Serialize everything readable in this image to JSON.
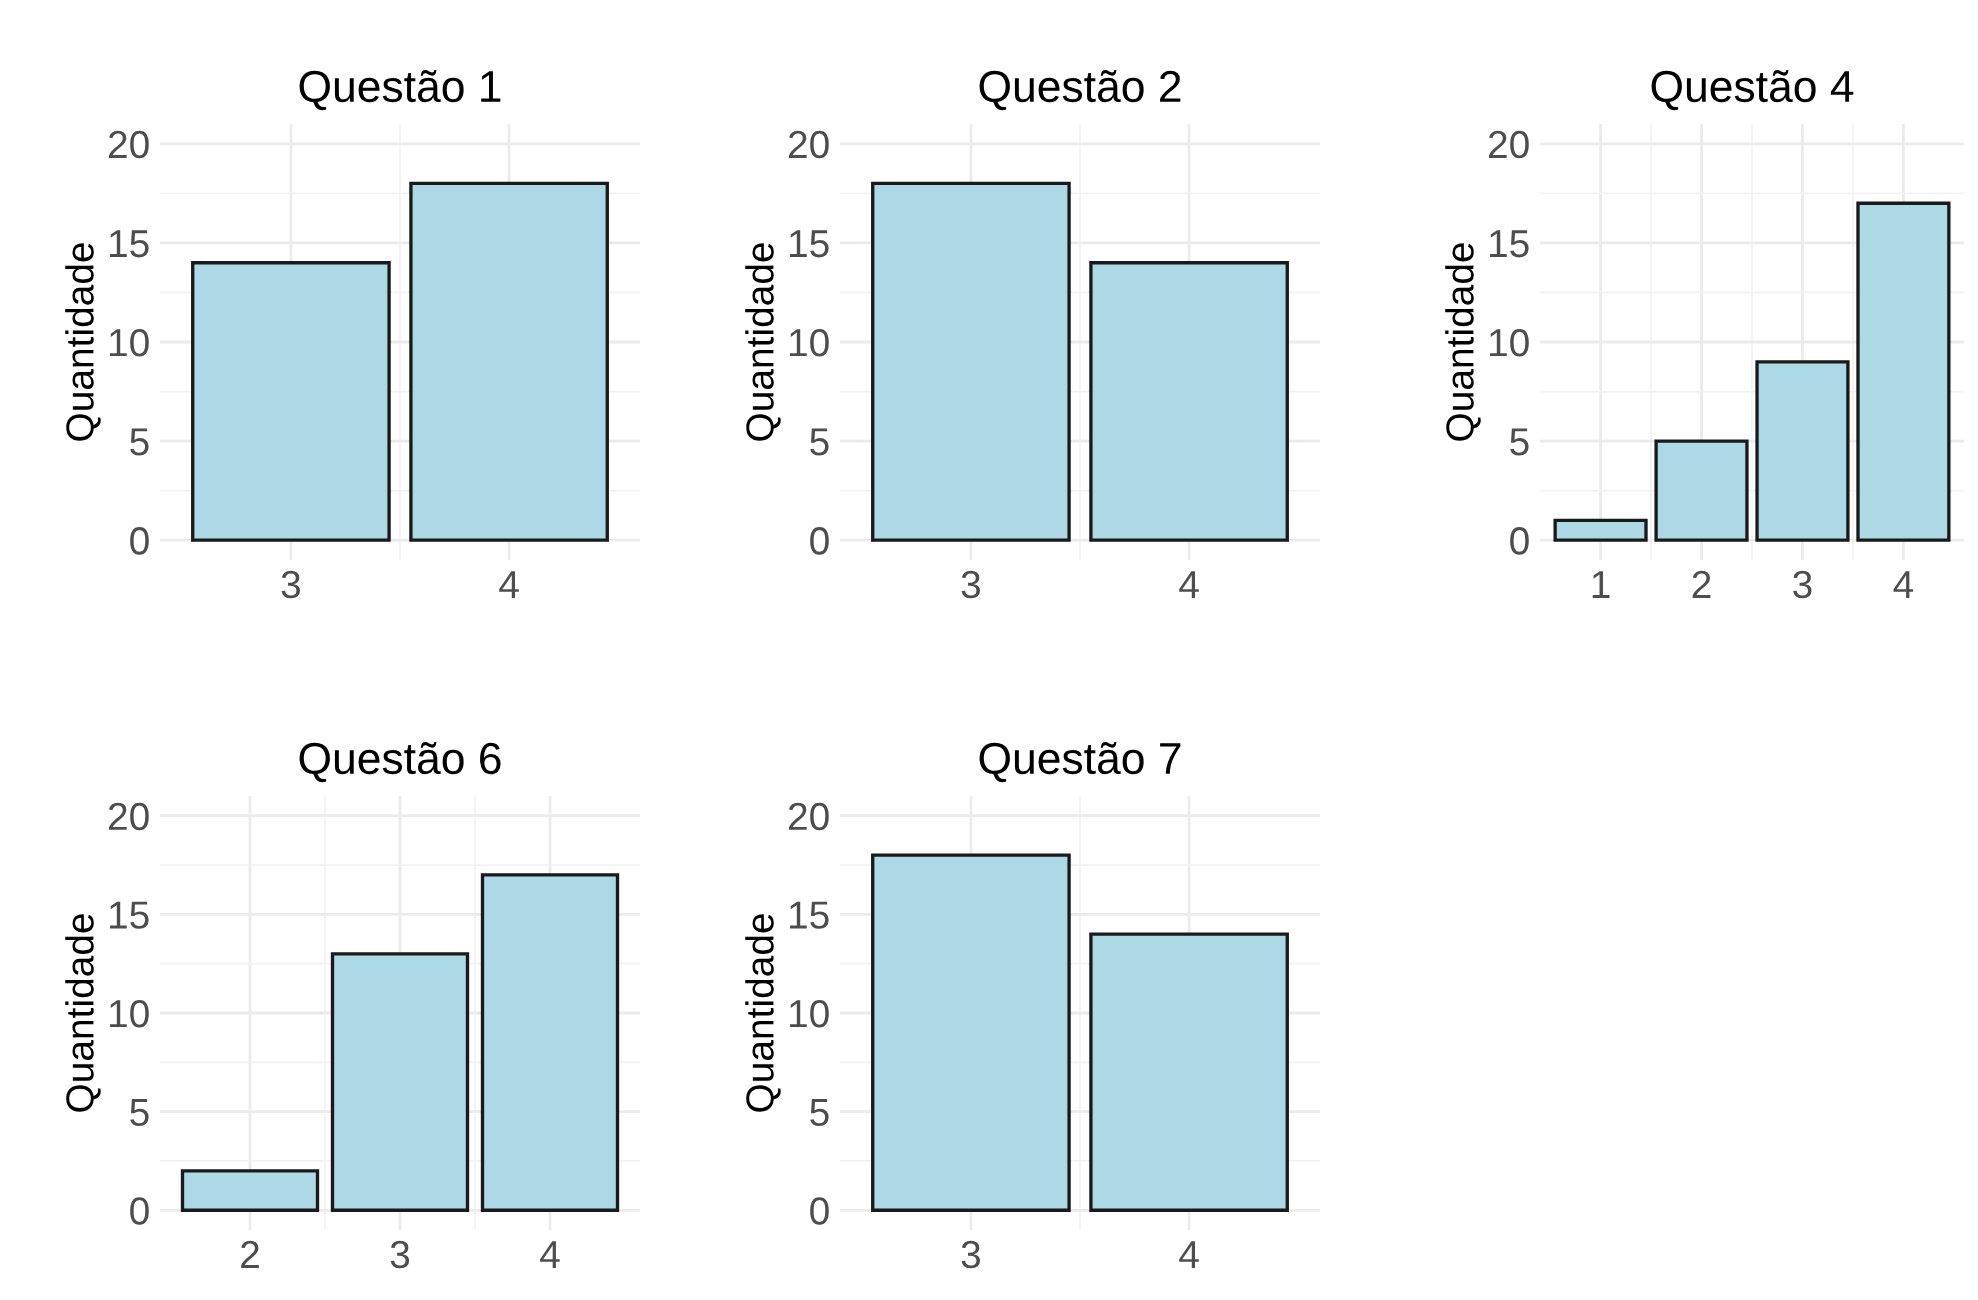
{
  "chart_data": [
    {
      "type": "bar",
      "title": "Questão 1",
      "ylabel": "Quantidade",
      "categories": [
        "3",
        "4"
      ],
      "values": [
        14,
        18
      ],
      "color": "#add8e6",
      "ylim": [
        -1,
        21
      ],
      "yticks": [
        0,
        5,
        10,
        15,
        20
      ],
      "grid": true
    },
    {
      "type": "bar",
      "title": "Questão 2",
      "ylabel": "Quantidade",
      "categories": [
        "3",
        "4"
      ],
      "values": [
        18,
        14
      ],
      "color": "#add8e6",
      "ylim": [
        -1,
        21
      ],
      "yticks": [
        0,
        5,
        10,
        15,
        20
      ],
      "grid": true
    },
    {
      "type": "bar",
      "title": "Questão 4",
      "ylabel": "Quantidade",
      "categories": [
        "1",
        "2",
        "3",
        "4"
      ],
      "values": [
        1,
        5,
        9,
        17
      ],
      "color": "#add8e6",
      "ylim": [
        -1,
        21
      ],
      "yticks": [
        0,
        5,
        10,
        15,
        20
      ],
      "grid": true
    },
    {
      "type": "bar",
      "title": "Questão 6",
      "ylabel": "Quantidade",
      "categories": [
        "2",
        "3",
        "4"
      ],
      "values": [
        2,
        13,
        17
      ],
      "color": "#add8e6",
      "ylim": [
        -1,
        21
      ],
      "yticks": [
        0,
        5,
        10,
        15,
        20
      ],
      "grid": true
    },
    {
      "type": "bar",
      "title": "Questão 7",
      "ylabel": "Quantidade",
      "categories": [
        "3",
        "4"
      ],
      "values": [
        18,
        14
      ],
      "color": "#add8e6",
      "ylim": [
        -1,
        21
      ],
      "yticks": [
        0,
        5,
        10,
        15,
        20
      ],
      "grid": true
    }
  ]
}
